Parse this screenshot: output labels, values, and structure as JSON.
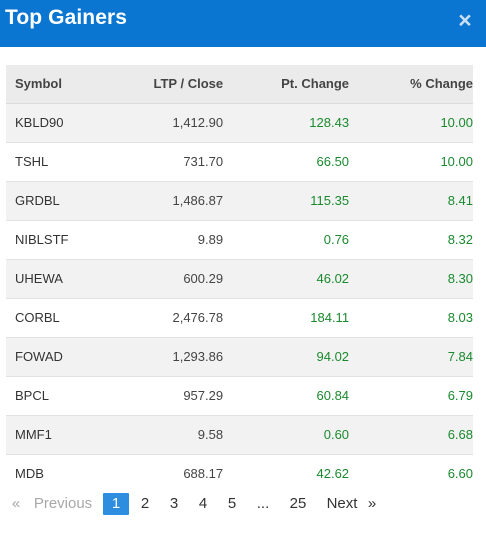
{
  "header": {
    "title": "Top Gainers",
    "close_glyph": "×",
    "close_icon": "close-icon",
    "background": "#0b76d1"
  },
  "table": {
    "columns": [
      "Symbol",
      "LTP / Close",
      "Pt. Change",
      "% Change"
    ],
    "rows": [
      {
        "symbol": "KBLD90",
        "ltp": "1,412.90",
        "pt_change": "128.43",
        "pct_change": "10.00"
      },
      {
        "symbol": "TSHL",
        "ltp": "731.70",
        "pt_change": "66.50",
        "pct_change": "10.00"
      },
      {
        "symbol": "GRDBL",
        "ltp": "1,486.87",
        "pt_change": "115.35",
        "pct_change": "8.41"
      },
      {
        "symbol": "NIBLSTF",
        "ltp": "9.89",
        "pt_change": "0.76",
        "pct_change": "8.32"
      },
      {
        "symbol": "UHEWA",
        "ltp": "600.29",
        "pt_change": "46.02",
        "pct_change": "8.30"
      },
      {
        "symbol": "CORBL",
        "ltp": "2,476.78",
        "pt_change": "184.11",
        "pct_change": "8.03"
      },
      {
        "symbol": "FOWAD",
        "ltp": "1,293.86",
        "pt_change": "94.02",
        "pct_change": "7.84"
      },
      {
        "symbol": "BPCL",
        "ltp": "957.29",
        "pt_change": "60.84",
        "pct_change": "6.79"
      },
      {
        "symbol": "MMF1",
        "ltp": "9.58",
        "pt_change": "0.60",
        "pct_change": "6.68"
      },
      {
        "symbol": "MDB",
        "ltp": "688.17",
        "pt_change": "42.62",
        "pct_change": "6.60"
      }
    ],
    "positive_color": "#1a8a2e"
  },
  "pagination": {
    "prev_arrow": "«",
    "prev_label": "Previous",
    "pages": [
      "1",
      "2",
      "3",
      "4",
      "5"
    ],
    "ellipsis": "...",
    "last_page": "25",
    "next_label": "Next",
    "next_arrow": "»",
    "current_page": "1",
    "active_color": "#2d8ee0"
  }
}
